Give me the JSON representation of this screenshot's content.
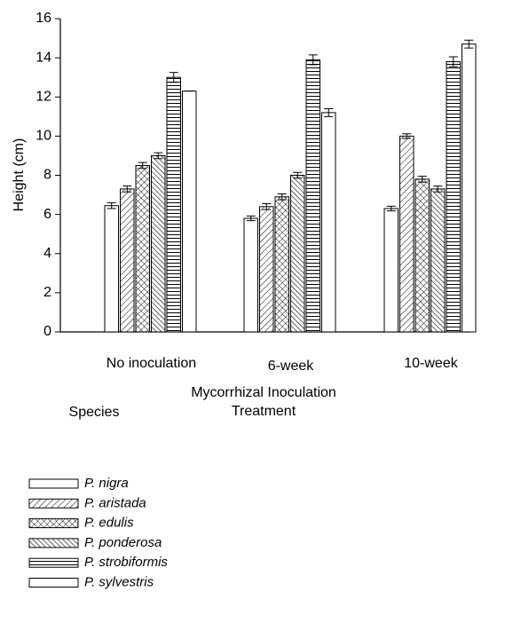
{
  "chart_data": {
    "type": "bar",
    "y_label": "Height (cm)",
    "x_label": [
      "Mycorrhizal Inoculation",
      "Treatment"
    ],
    "legend_title": "Species",
    "categories": [
      "No inoculation",
      "6-week",
      "10-week"
    ],
    "ylim": [
      0,
      16
    ],
    "yticks": [
      0,
      2,
      4,
      6,
      8,
      10,
      12,
      14,
      16
    ],
    "legend": "bottom-left",
    "series": [
      {
        "name": "P. nigra",
        "color": "#000000",
        "pattern": "none",
        "values": [
          6.45,
          5.8,
          6.3
        ],
        "errors": [
          0.15,
          0.12,
          0.12
        ]
      },
      {
        "name": "P. aristada",
        "color": "#000000",
        "pattern": "diagonal",
        "values": [
          7.3,
          6.4,
          10.0
        ],
        "errors": [
          0.15,
          0.15,
          0.12
        ]
      },
      {
        "name": "P. edulis",
        "color": "#000000",
        "pattern": "crosshatch",
        "values": [
          8.5,
          6.9,
          7.8
        ],
        "errors": [
          0.15,
          0.15,
          0.15
        ]
      },
      {
        "name": "P. ponderosa",
        "color": "#000000",
        "pattern": "backslash",
        "values": [
          9.0,
          8.0,
          7.3
        ],
        "errors": [
          0.15,
          0.15,
          0.15
        ]
      },
      {
        "name": "P. strobiformis",
        "color": "#000000",
        "pattern": "horizontal",
        "values": [
          13.0,
          13.9,
          13.8
        ],
        "errors": [
          0.25,
          0.25,
          0.25
        ]
      },
      {
        "name": "P. sylvestris",
        "color": "#000000",
        "pattern": "none",
        "values": [
          12.3,
          11.2,
          14.7
        ],
        "errors": [
          0,
          0.2,
          0.2
        ]
      }
    ]
  }
}
